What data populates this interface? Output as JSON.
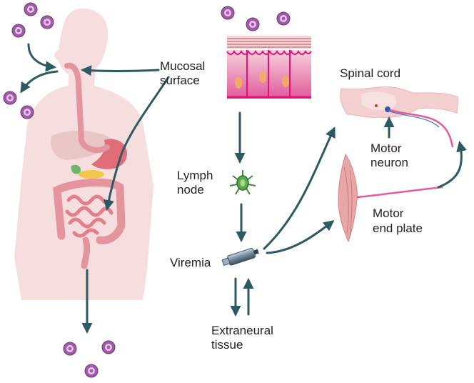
{
  "labels": {
    "mucosal_line1": "Mucosal",
    "mucosal_line2": "surface",
    "spinal_cord": "Spinal cord",
    "motor_neuron_line1": "Motor",
    "motor_neuron_line2": "neuron",
    "lymph_line1": "Lymph",
    "lymph_line2": "node",
    "motor_end_plate_line1": "Motor",
    "motor_end_plate_line2": "end plate",
    "viremia": "Viremia",
    "extraneural_line1": "Extraneural",
    "extraneural_line2": "tissue"
  },
  "colors": {
    "arrow": "#2c5a63",
    "virus_outer": "#a05aa8",
    "virus_inner": "#e6c6ec",
    "body": "#f6dede",
    "gut": "#e3949c",
    "stomach": "#e06d77",
    "epithelium": "#e0127a",
    "spinal": "#f3cfcf",
    "lymph": "#5aa84a",
    "syringe": "#5c7383"
  },
  "icons": [
    "virus-particle-icon",
    "lymph-node-icon",
    "syringe-icon"
  ]
}
